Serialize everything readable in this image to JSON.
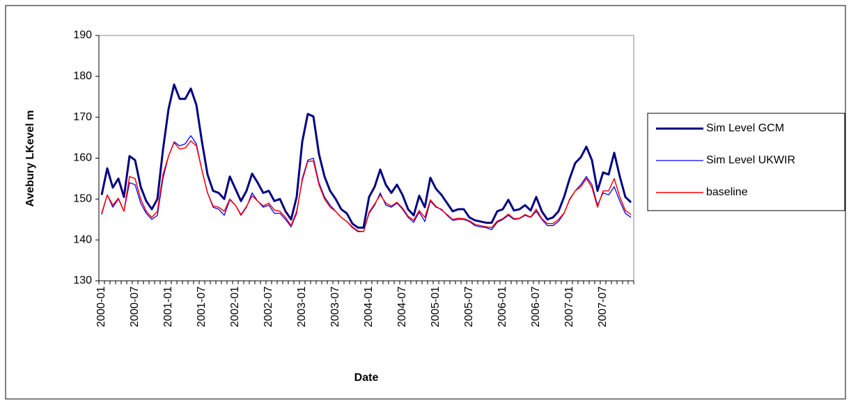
{
  "chart_data": {
    "type": "line",
    "y_label": "Avebury LKevel m",
    "x_label": "Date",
    "categories": [
      "2000-01",
      null,
      null,
      null,
      null,
      null,
      "2000-07",
      null,
      null,
      null,
      null,
      null,
      "2001-01",
      null,
      null,
      null,
      null,
      null,
      "2001-07",
      null,
      null,
      null,
      null,
      null,
      "2002-01",
      null,
      null,
      null,
      null,
      null,
      "2002-07",
      null,
      null,
      null,
      null,
      null,
      "2003-01",
      null,
      null,
      null,
      null,
      null,
      "2003-07",
      null,
      null,
      null,
      null,
      null,
      "2004-01",
      null,
      null,
      null,
      null,
      null,
      "2004-07",
      null,
      null,
      null,
      null,
      null,
      "2005-01",
      null,
      null,
      null,
      null,
      null,
      "2005-07",
      null,
      null,
      null,
      null,
      null,
      "2006-01",
      null,
      null,
      null,
      null,
      null,
      "2006-07",
      null,
      null,
      null,
      null,
      null,
      "2007-01",
      null,
      null,
      null,
      null,
      null,
      "2007-07",
      null,
      null,
      null,
      null,
      null
    ],
    "series": [
      {
        "name": "Sim Level GCM",
        "color": "#000080",
        "width": 3,
        "values": [
          151,
          157.5,
          152.8,
          155,
          150.5,
          160.5,
          159.5,
          153,
          149.5,
          147.5,
          150,
          162,
          172,
          178,
          174.5,
          174.5,
          177,
          173,
          164,
          156,
          152,
          151.5,
          150,
          155.5,
          152.5,
          149.5,
          152,
          156.2,
          154,
          151.5,
          152,
          149.5,
          150,
          147,
          145,
          150.5,
          164,
          170.8,
          170.2,
          161,
          155.5,
          152,
          150,
          147.5,
          146.5,
          144,
          143,
          143,
          150.5,
          153,
          157.2,
          153.5,
          151.5,
          153.5,
          151,
          147.5,
          146,
          150.8,
          148,
          155.2,
          152.5,
          151,
          149,
          147,
          147.5,
          147.5,
          145.5,
          144.8,
          144.5,
          144.2,
          144.2,
          147,
          147.5,
          149.8,
          147.2,
          147.5,
          148.5,
          147.2,
          150.5,
          147,
          145,
          145.5,
          147,
          150.5,
          155,
          158.8,
          160.2,
          162.8,
          159.5,
          152,
          156.5,
          156,
          161.3,
          155.5,
          150.5,
          149.2
        ]
      },
      {
        "name": "Sim Level UKWIR",
        "color": "#0000ff",
        "width": 1.3,
        "values": [
          146.2,
          151,
          148,
          150,
          147,
          154,
          153.5,
          149,
          146.5,
          145,
          146,
          155,
          160.5,
          164,
          163,
          163.5,
          165.5,
          163.5,
          157,
          151.5,
          148,
          147.5,
          146,
          149.8,
          148.5,
          146,
          148,
          151.5,
          149.5,
          148,
          148.5,
          146.5,
          146.5,
          145,
          143.2,
          146.5,
          155,
          159.5,
          160,
          154,
          150.5,
          148.5,
          147,
          145.5,
          144.5,
          143,
          142,
          142,
          146.5,
          148.5,
          151.5,
          148.5,
          148,
          149,
          147.5,
          145.5,
          144.3,
          146.8,
          144.5,
          149.5,
          148,
          147.5,
          146,
          144.8,
          145,
          145,
          144.5,
          143.5,
          143.2,
          143,
          142.5,
          144.3,
          145,
          146,
          145,
          145.2,
          146,
          145.5,
          147,
          145,
          143.5,
          143.5,
          144.5,
          146.5,
          150,
          152,
          153.5,
          155.5,
          153.5,
          148.5,
          151.5,
          151,
          153,
          149.5,
          146.5,
          145.5
        ]
      },
      {
        "name": "baseline",
        "color": "#ff0000",
        "width": 1.5,
        "values": [
          146.5,
          151,
          148.5,
          150.2,
          147,
          155.5,
          155,
          150,
          147,
          145.5,
          147,
          156,
          160.5,
          163.8,
          162.2,
          162.5,
          164.2,
          163,
          157,
          151.5,
          148.3,
          148,
          147,
          150,
          148.5,
          146.2,
          148.2,
          150.8,
          149.5,
          148.3,
          149,
          147.3,
          147,
          145.5,
          143.5,
          147,
          154.5,
          159.2,
          159.3,
          153.5,
          150,
          148,
          147,
          145.5,
          144.5,
          143.2,
          142.2,
          142,
          146.8,
          148.8,
          151,
          149,
          148.3,
          149.2,
          147.8,
          145.8,
          144.8,
          147.2,
          145.5,
          149.8,
          148.2,
          147.3,
          146.2,
          145,
          145.3,
          145.2,
          144.7,
          143.8,
          143.5,
          143.2,
          143,
          144.6,
          145.2,
          146.3,
          145.2,
          145.3,
          146.2,
          145.6,
          147.5,
          145.2,
          144,
          144,
          145,
          146.6,
          149.8,
          152,
          153,
          155,
          152.8,
          148,
          152,
          152,
          155,
          150.5,
          147.2,
          146.2
        ]
      }
    ],
    "ylim": [
      130,
      190
    ],
    "yticks": [
      130,
      140,
      150,
      160,
      170,
      180,
      190
    ],
    "grid": false,
    "legend": "right"
  }
}
